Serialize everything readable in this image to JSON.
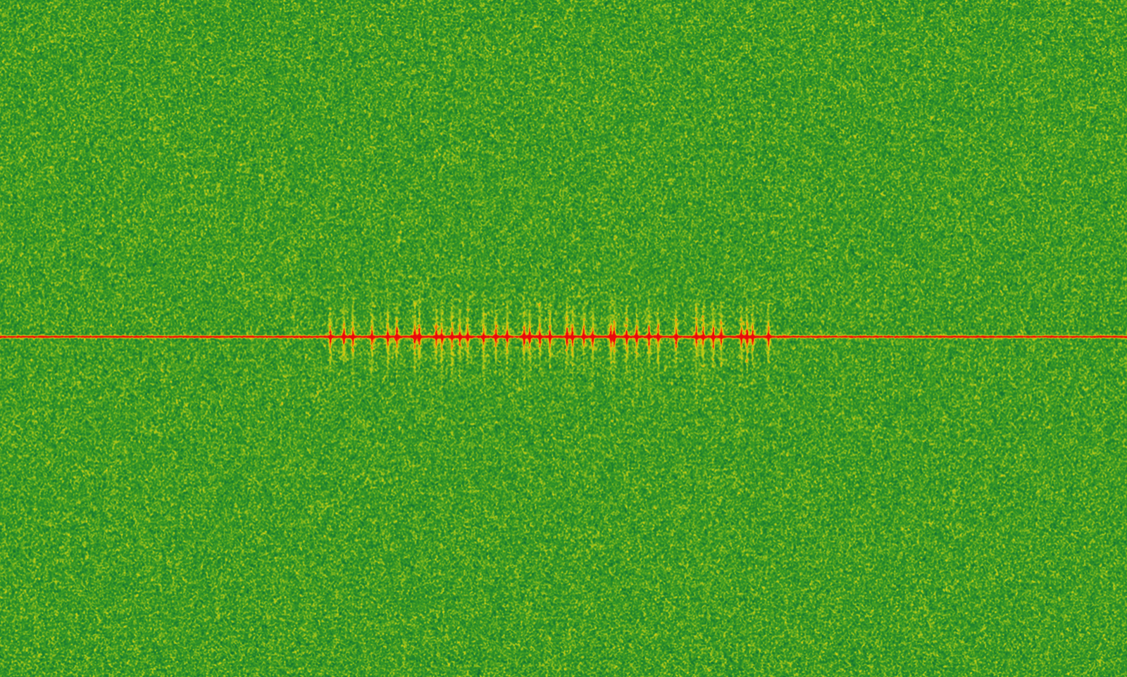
{
  "chart_data": {
    "type": "spectrogram",
    "xlim": [
      0,
      100
    ],
    "ylim": [
      0,
      100
    ],
    "tick_labels": false,
    "grid": false,
    "carrier": 50.2,
    "pulses": [
      29.3,
      30.5,
      31.3,
      33.0,
      34.4,
      35.2,
      36.8,
      37.2,
      38.7,
      39.2,
      40.1,
      40.8,
      41.5,
      42.9,
      44.0,
      45.0,
      46.5,
      47.0,
      47.9,
      48.8,
      50.3,
      50.8,
      51.8,
      52.6,
      54.2,
      54.5,
      55.6,
      56.5,
      57.6,
      58.4,
      60.0,
      61.8,
      62.4,
      63.3,
      64.0,
      65.8,
      66.3,
      66.8,
      68.2
    ]
  }
}
